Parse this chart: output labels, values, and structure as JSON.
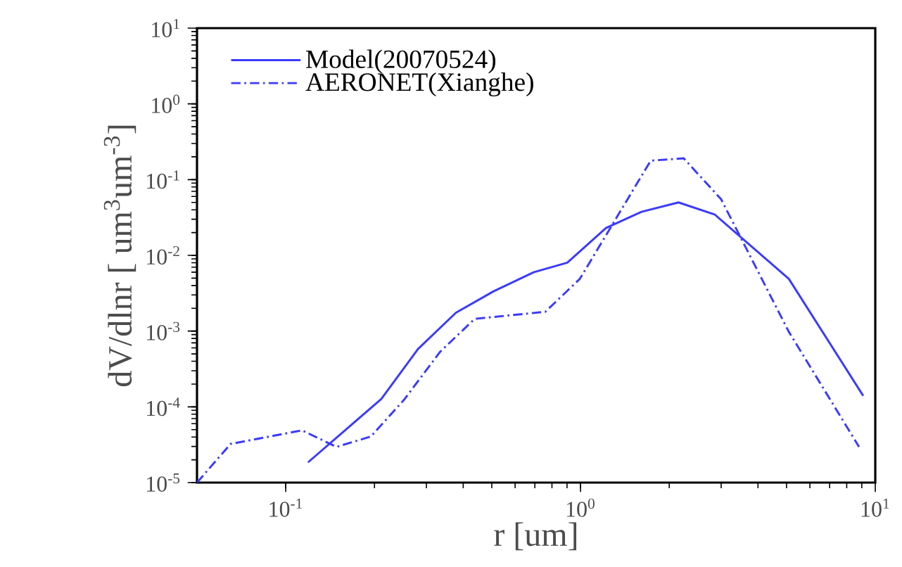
{
  "chart_data": {
    "type": "line",
    "xlabel": "r [um]",
    "ylabel": "dV/dlnr [ um$^{3}$um$^{-3}$]",
    "log": "xy",
    "xlim": [
      0.05,
      10
    ],
    "ylim": [
      1e-05,
      10
    ],
    "xticks": [
      {
        "value": 0.1,
        "label": "10$^{-1}$"
      },
      {
        "value": 1,
        "label": "10$^{0}$"
      },
      {
        "value": 10,
        "label": "10$^{1}$"
      }
    ],
    "yticks": [
      {
        "value": 1e-05,
        "label": "10$^{-5}$"
      },
      {
        "value": 0.0001,
        "label": "10$^{-4}$"
      },
      {
        "value": 0.001,
        "label": "10$^{-3}$"
      },
      {
        "value": 0.01,
        "label": "10$^{-2}$"
      },
      {
        "value": 0.1,
        "label": "10$^{-1}$"
      },
      {
        "value": 1,
        "label": "10$^{0}$"
      },
      {
        "value": 10,
        "label": "10$^{1}$"
      }
    ],
    "grid": false,
    "legend": "top left",
    "series": [
      {
        "name": "Model(20070524)",
        "color": "#3a3aff",
        "line_style": "solid",
        "x": [
          0.119,
          0.211,
          0.281,
          0.378,
          0.507,
          0.695,
          0.902,
          1.22,
          1.61,
          2.15,
          2.86,
          5.09,
          9.1
        ],
        "values": [
          1.85e-05,
          0.000127,
          0.00058,
          0.00175,
          0.00335,
          0.006,
          0.008,
          0.023,
          0.0375,
          0.05,
          0.0344,
          0.0049,
          0.00014
        ]
      },
      {
        "name": "AERONET(Xianghe)",
        "color": "#3a3aff",
        "line_style": "dashed",
        "x": [
          0.05,
          0.065,
          0.1135,
          0.1486,
          0.1945,
          0.252,
          0.3335,
          0.4375,
          0.76,
          0.995,
          1.73,
          2.24,
          3.0,
          5.09,
          8.81
        ],
        "values": [
          1e-05,
          3.24e-05,
          4.9e-05,
          2.96e-05,
          4.06e-05,
          0.000124,
          0.00053,
          0.00145,
          0.0018,
          0.0049,
          0.178,
          0.191,
          0.055,
          0.00098,
          2.96e-05
        ]
      }
    ]
  }
}
